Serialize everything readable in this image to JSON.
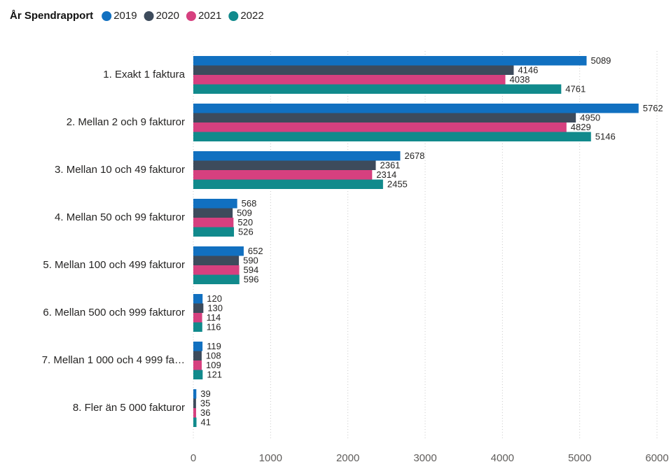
{
  "chart_data": {
    "type": "hbar",
    "legend_title": "År Spendrapport",
    "legend": "top-left",
    "grid": true,
    "categories": [
      "1. Exakt 1 faktura",
      "2. Mellan 2 och 9 fakturor",
      "3. Mellan 10 och 49 fakturor",
      "4. Mellan 50 och 99 fakturor",
      "5. Mellan 100 och 499 fakturor",
      "6. Mellan 500 och 999 fakturor",
      "7. Mellan 1 000 och 4 999 fa…",
      "8. Fler än 5 000 fakturor"
    ],
    "series": [
      {
        "name": "2019",
        "color": "#1170c0",
        "values": [
          5089,
          5762,
          2678,
          568,
          652,
          120,
          119,
          39
        ]
      },
      {
        "name": "2020",
        "color": "#3d4b5c",
        "values": [
          4146,
          4950,
          2361,
          509,
          590,
          130,
          108,
          35
        ]
      },
      {
        "name": "2021",
        "color": "#d6407f",
        "values": [
          4038,
          4829,
          2314,
          520,
          594,
          114,
          109,
          36
        ]
      },
      {
        "name": "2022",
        "color": "#118a8c",
        "values": [
          4761,
          5146,
          2455,
          526,
          596,
          116,
          121,
          41
        ]
      }
    ],
    "xlim": [
      0,
      6000
    ],
    "xticks": [
      0,
      1000,
      2000,
      3000,
      4000,
      5000,
      6000
    ]
  }
}
